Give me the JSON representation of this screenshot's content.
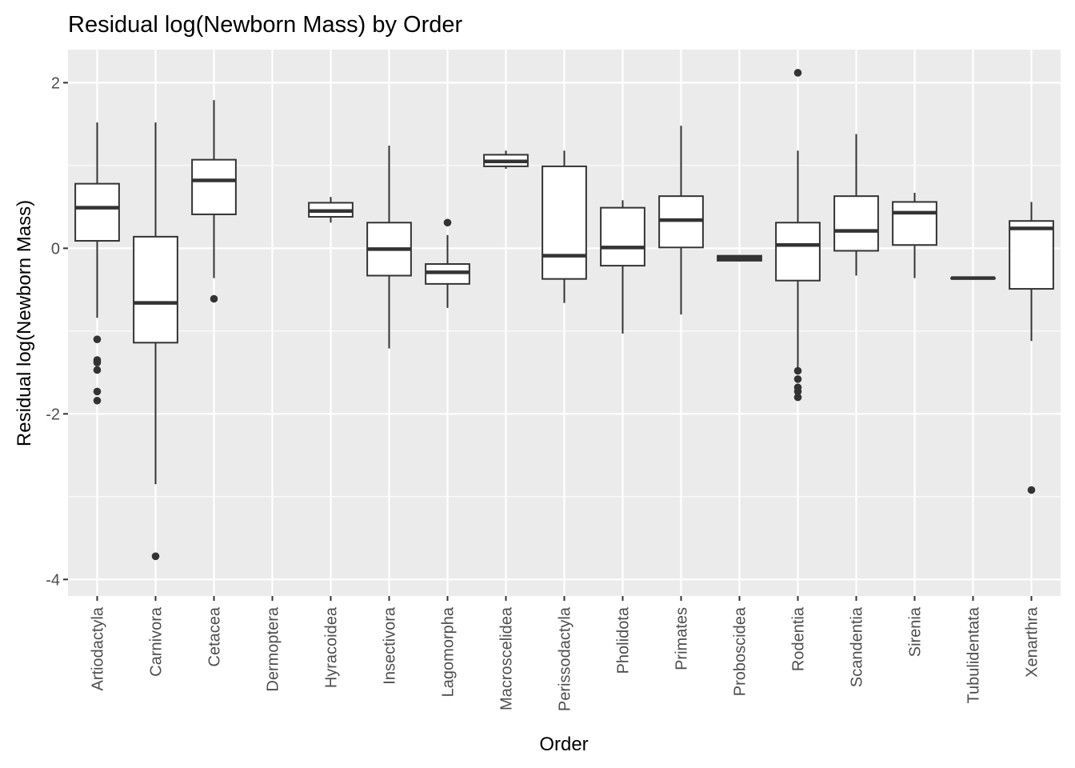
{
  "chart_data": {
    "type": "box",
    "title": "Residual log(Newborn Mass) by Order",
    "xlabel": "Order",
    "ylabel": "Residual log(Newborn Mass)",
    "ylim": [
      -4.2,
      2.4
    ],
    "yticks": [
      -4,
      -2,
      0,
      2
    ],
    "grid": true,
    "categories": [
      "Artiodactyla",
      "Carnivora",
      "Cetacea",
      "Dermoptera",
      "Hyracoidea",
      "Insectivora",
      "Lagomorpha",
      "Macroscelidea",
      "Perissodactyla",
      "Pholidota",
      "Primates",
      "Proboscidea",
      "Rodentia",
      "Scandentia",
      "Sirenia",
      "Tubulidentata",
      "Xenarthra"
    ],
    "boxes": [
      {
        "category": "Artiodactyla",
        "low": -0.84,
        "q1": 0.09,
        "median": 0.49,
        "q3": 0.78,
        "high": 1.52,
        "outliers": [
          -1.1,
          -1.35,
          -1.38,
          -1.47,
          -1.73,
          -1.84
        ]
      },
      {
        "category": "Carnivora",
        "low": -2.85,
        "q1": -1.14,
        "median": -0.66,
        "q3": 0.14,
        "high": 1.52,
        "outliers": [
          -3.72
        ]
      },
      {
        "category": "Cetacea",
        "low": -0.36,
        "q1": 0.41,
        "median": 0.82,
        "q3": 1.07,
        "high": 1.79,
        "outliers": [
          -0.61
        ]
      },
      {
        "category": "Dermoptera",
        "low": null,
        "q1": null,
        "median": null,
        "q3": null,
        "high": null,
        "outliers": []
      },
      {
        "category": "Hyracoidea",
        "low": 0.31,
        "q1": 0.38,
        "median": 0.45,
        "q3": 0.55,
        "high": 0.62,
        "outliers": []
      },
      {
        "category": "Insectivora",
        "low": -1.21,
        "q1": -0.33,
        "median": -0.01,
        "q3": 0.31,
        "high": 1.24,
        "outliers": []
      },
      {
        "category": "Lagomorpha",
        "low": -0.72,
        "q1": -0.43,
        "median": -0.29,
        "q3": -0.19,
        "high": 0.16,
        "outliers": [
          0.31
        ]
      },
      {
        "category": "Macroscelidea",
        "low": 0.96,
        "q1": 0.99,
        "median": 1.05,
        "q3": 1.13,
        "high": 1.18,
        "outliers": []
      },
      {
        "category": "Perissodactyla",
        "low": -0.66,
        "q1": -0.37,
        "median": -0.09,
        "q3": 0.99,
        "high": 1.18,
        "outliers": []
      },
      {
        "category": "Pholidota",
        "low": -1.03,
        "q1": -0.21,
        "median": 0.01,
        "q3": 0.49,
        "high": 0.58,
        "outliers": []
      },
      {
        "category": "Primates",
        "low": -0.8,
        "q1": 0.01,
        "median": 0.34,
        "q3": 0.63,
        "high": 1.48,
        "outliers": []
      },
      {
        "category": "Proboscidea",
        "low": -0.16,
        "q1": -0.15,
        "median": -0.12,
        "q3": -0.09,
        "high": -0.08,
        "outliers": []
      },
      {
        "category": "Rodentia",
        "low": -1.45,
        "q1": -0.39,
        "median": 0.04,
        "q3": 0.31,
        "high": 1.18,
        "outliers": [
          2.12,
          -1.48,
          -1.58,
          -1.68,
          -1.73,
          -1.8
        ]
      },
      {
        "category": "Scandentia",
        "low": -0.33,
        "q1": -0.03,
        "median": 0.21,
        "q3": 0.63,
        "high": 1.38,
        "outliers": []
      },
      {
        "category": "Sirenia",
        "low": -0.36,
        "q1": 0.04,
        "median": 0.43,
        "q3": 0.56,
        "high": 0.67,
        "outliers": []
      },
      {
        "category": "Tubulidentata",
        "low": -0.36,
        "q1": -0.36,
        "median": -0.36,
        "q3": -0.36,
        "high": -0.36,
        "outliers": []
      },
      {
        "category": "Xenarthra",
        "low": -1.12,
        "q1": -0.49,
        "median": 0.24,
        "q3": 0.33,
        "high": 0.56,
        "outliers": [
          -2.92
        ]
      }
    ],
    "colors": {
      "panel": "#ebebeb",
      "grid": "#ffffff",
      "box_line": "#333333",
      "box_fill": "#ffffff",
      "tick_text": "#4d4d4d"
    }
  }
}
